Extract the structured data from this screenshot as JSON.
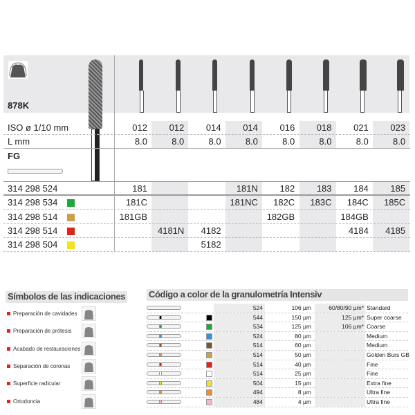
{
  "product": {
    "name": "878K",
    "shank_type": "FG"
  },
  "table": {
    "iso_label": "ISO ø 1/10 mm",
    "length_label": "L mm",
    "iso": [
      "012",
      "012",
      "014",
      "014",
      "016",
      "018",
      "021",
      "023"
    ],
    "length": [
      "8.0",
      "8.0",
      "8.0",
      "8.0",
      "8.0",
      "8.0",
      "8.0",
      "8.0"
    ],
    "rows": [
      {
        "code": "314 298 524",
        "color": "",
        "cells": [
          "181",
          "",
          "",
          "181N",
          "182",
          "183",
          "184",
          "185"
        ]
      },
      {
        "code": "314 298 534",
        "color": "#1fa83a",
        "cells": [
          "181C",
          "",
          "",
          "181NC",
          "182C",
          "183C",
          "184C",
          "185C"
        ]
      },
      {
        "code": "314 298 514",
        "color": "#c9a04e",
        "cells": [
          "181GB",
          "",
          "",
          "",
          "182GB",
          "",
          "184GB",
          ""
        ]
      },
      {
        "code": "314 298 514",
        "color": "#e2231a",
        "cells": [
          "",
          "4181N",
          "4182",
          "",
          "",
          "",
          "4184",
          "4185"
        ]
      },
      {
        "code": "314 298 504",
        "color": "#f5e21a",
        "cells": [
          "",
          "",
          "5182",
          "",
          "",
          "",
          "",
          ""
        ]
      }
    ]
  },
  "indications": {
    "title": "Símbolos de las indicaciones",
    "items": [
      {
        "label": "Preparación de cavidades",
        "icon": "cavity-prep-icon"
      },
      {
        "label": "Preparación de prótesis",
        "icon": "crown-prep-icon"
      },
      {
        "label": "Acabado de restauraciones",
        "icon": "restoration-finish-icon"
      },
      {
        "label": "Separación de coronas",
        "icon": "crown-separation-icon"
      },
      {
        "label": "Superficie radicular",
        "icon": "root-surface-icon"
      },
      {
        "label": "Ortodoncia",
        "icon": "orthodontics-icon"
      }
    ]
  },
  "grit": {
    "title": "Código a color de la granulometría Intensiv",
    "rows": [
      {
        "color": "",
        "num": "524",
        "um": "106 µm",
        "extra": "60/80/90 µm*",
        "name": "Standard"
      },
      {
        "color": "#000000",
        "num": "544",
        "um": "150 µm",
        "extra": "125 µm*",
        "name": "Super coarse"
      },
      {
        "color": "#1fa83a",
        "num": "534",
        "um": "125 µm",
        "extra": "106 µm*",
        "name": "Coarse"
      },
      {
        "color": "#3a8fd8",
        "num": "524",
        "um": "80 µm",
        "extra": "",
        "name": "Medium"
      },
      {
        "color": "#7a5530",
        "num": "514",
        "um": "60 µm",
        "extra": "",
        "name": "Medium"
      },
      {
        "color": "#c9a04e",
        "num": "514",
        "um": "50 µm",
        "extra": "",
        "name": "Golden Burs GB"
      },
      {
        "color": "#e2231a",
        "num": "514",
        "um": "40 µm",
        "extra": "",
        "name": "Fine"
      },
      {
        "color": "#ffffff",
        "num": "514",
        "um": "25 µm",
        "extra": "",
        "name": "Fine"
      },
      {
        "color": "#f5e21a",
        "num": "504",
        "um": "15 µm",
        "extra": "",
        "name": "Extra fine"
      },
      {
        "color": "#f08a3c",
        "num": "494",
        "um": "8 µm",
        "extra": "",
        "name": "Ultra fine"
      },
      {
        "color": "#f5b8cc",
        "num": "484",
        "um": "4 µm",
        "extra": "",
        "name": "Ultra fine"
      }
    ]
  }
}
